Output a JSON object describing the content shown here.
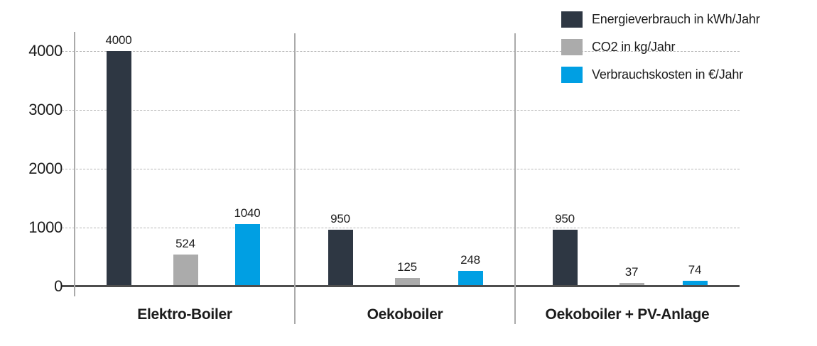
{
  "chart_data": {
    "type": "bar",
    "title": "",
    "categories": [
      "Elektro-Boiler",
      "Oekoboiler",
      "Oekoboiler + PV-Anlage"
    ],
    "series": [
      {
        "name": "Energieverbrauch in kWh/Jahr",
        "color": "#2e3743",
        "values": [
          4000,
          950,
          950
        ]
      },
      {
        "name": "CO2 in kg/Jahr",
        "color": "#ababab",
        "values": [
          524,
          125,
          37
        ]
      },
      {
        "name": "Verbrauchskosten in €/Jahr",
        "color": "#009fe3",
        "values": [
          1040,
          248,
          74
        ]
      }
    ],
    "yticks": [
      0,
      1000,
      2000,
      3000,
      4000
    ],
    "ylim": [
      0,
      4000
    ],
    "grid": "dashed-horizontal",
    "legend_position": "top-right",
    "group_separators": true
  }
}
